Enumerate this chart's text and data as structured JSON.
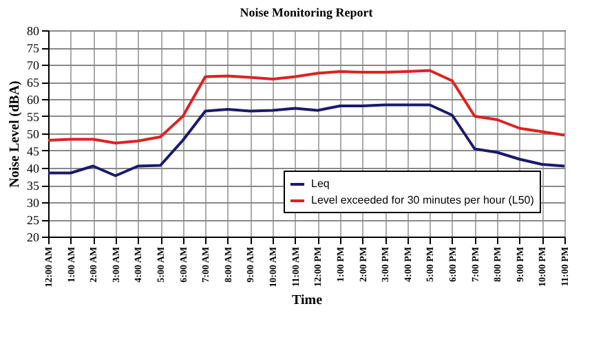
{
  "chart_data": {
    "type": "line",
    "title": "Noise Monitoring Report",
    "xlabel": "Time",
    "ylabel": "Noise Level (dBA)",
    "categories": [
      "12:00 AM",
      "1:00 AM",
      "2:00 AM",
      "3:00 AM",
      "4:00 AM",
      "5:00 AM",
      "6:00 AM",
      "7:00 AM",
      "8:00 AM",
      "9:00 AM",
      "10:00 AM",
      "11:00 AM",
      "12:00 PM",
      "1:00 PM",
      "2:00 PM",
      "3:00 PM",
      "4:00 PM",
      "5:00 PM",
      "6:00 PM",
      "7:00 PM",
      "8:00 PM",
      "9:00 PM",
      "10:00 PM",
      "11:00 PM"
    ],
    "series": [
      {
        "name": "Leq",
        "color": "#1a1a6e",
        "values": [
          38.5,
          38.5,
          40.5,
          37.7,
          40.5,
          40.7,
          48,
          56.5,
          57,
          56.5,
          56.7,
          57.3,
          56.7,
          58,
          58,
          58.3,
          58.3,
          58.3,
          55.3,
          45.5,
          44.5,
          42.5,
          41,
          40.5
        ]
      },
      {
        "name": "Level exceeded for 30 minutes per hour (L50)",
        "color": "#e02020",
        "values": [
          48,
          48.3,
          48.3,
          47.2,
          47.8,
          49,
          55,
          66.5,
          66.7,
          66.3,
          65.8,
          66.5,
          67.5,
          68,
          67.8,
          67.8,
          68,
          68.3,
          65.3,
          55,
          54,
          51.5,
          50.5,
          49.5
        ]
      }
    ],
    "ylim": [
      20,
      80
    ],
    "yticks": [
      20,
      25,
      30,
      35,
      40,
      45,
      50,
      55,
      60,
      65,
      70,
      75,
      80
    ],
    "grid": true,
    "legend": "bottom right",
    "marker": "none",
    "line_style": "solid"
  }
}
